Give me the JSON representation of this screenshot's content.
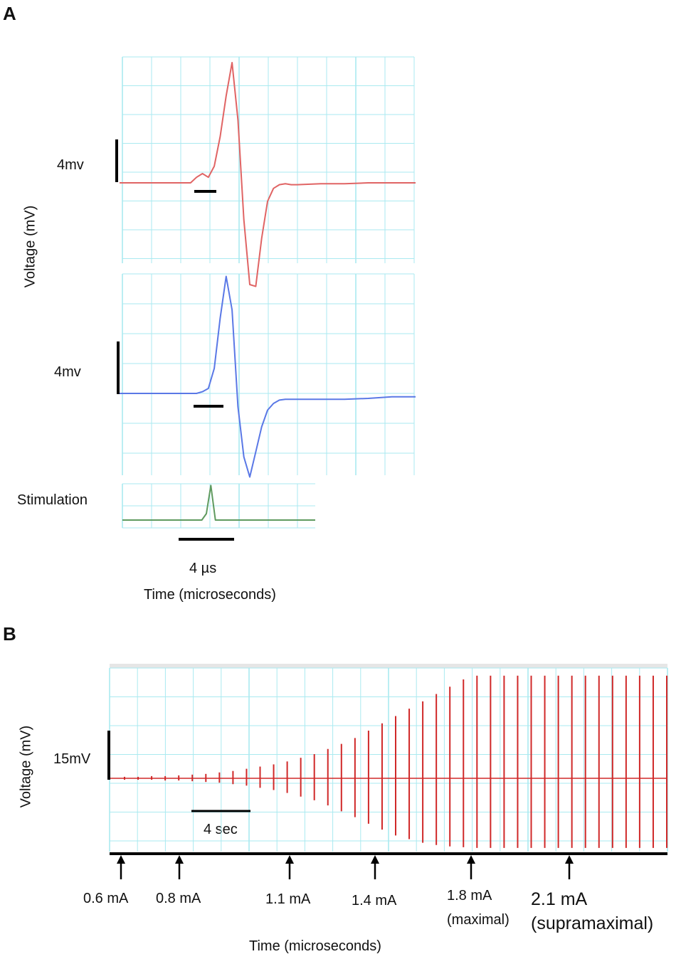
{
  "panel_a": {
    "letter": "A",
    "ylabel": "Voltage (mV)",
    "scale_top": "4mv",
    "scale_mid": "4mv",
    "stim_label": "Stimulation",
    "time_scale": "4 µs",
    "xlabel": "Time (microseconds)"
  },
  "panel_b": {
    "letter": "B",
    "ylabel": "Voltage (mV)",
    "scale_v": "15mV",
    "time_scale": "4 sec",
    "xlabel": "Time (microseconds)",
    "markers": [
      {
        "line1": "0.6 mA",
        "line2": ""
      },
      {
        "line1": "0.8 mA",
        "line2": ""
      },
      {
        "line1": "1.1 mA",
        "line2": ""
      },
      {
        "line1": "1.4 mA",
        "line2": ""
      },
      {
        "line1": "1.8 mA",
        "line2": "(maximal)"
      },
      {
        "line1": "2.1 mA",
        "line2": "(supramaximal)"
      }
    ]
  },
  "colors": {
    "grid": "#aaeaf0",
    "trace_red": "#e06464",
    "trace_blue": "#5a78e6",
    "trace_green": "#5f9a5f",
    "bar_red": "#d02828"
  },
  "chart_data": [
    {
      "type": "line",
      "panel": "A-top",
      "series": [
        {
          "x": [
            0,
            6,
            6.5,
            7,
            7.5,
            8,
            8.5,
            9,
            9.5,
            10,
            10.5,
            11,
            11.5,
            12,
            12.5,
            13,
            13.5,
            14,
            14.5,
            15,
            17,
            19,
            21,
            23,
            25
          ],
          "y": [
            0,
            0,
            0.3,
            0.5,
            0.3,
            0.9,
            2.5,
            4.7,
            6.5,
            3.4,
            -2.0,
            -5.5,
            -5.6,
            -3.0,
            -1.0,
            -0.3,
            -0.1,
            -0.05,
            -0.1,
            -0.1,
            -0.05,
            -0.05,
            0,
            0,
            0
          ]
        }
      ],
      "scale_bar": "4mv"
    },
    {
      "type": "line",
      "panel": "A-middle",
      "series": [
        {
          "x": [
            0,
            6,
            6.5,
            7,
            7.5,
            8,
            8.5,
            9,
            9.5,
            10,
            10.5,
            11,
            11.5,
            12,
            12.5,
            13,
            13.5,
            14,
            14.5,
            15,
            17,
            19,
            21,
            23,
            25
          ],
          "y": [
            0,
            0,
            0,
            0.1,
            0.3,
            1.5,
            4.5,
            7.0,
            5.0,
            -0.8,
            -3.8,
            -5.0,
            -3.5,
            -2.0,
            -1.0,
            -0.6,
            -0.4,
            -0.35,
            -0.35,
            -0.35,
            -0.35,
            -0.35,
            -0.3,
            -0.2,
            -0.2
          ]
        }
      ],
      "scale_bar": "4mv"
    },
    {
      "type": "line",
      "panel": "A-stimulation",
      "series": [
        {
          "x": [
            0,
            7.0,
            7.4,
            7.8,
            8.2,
            17
          ],
          "y": [
            0,
            0,
            0.5,
            2.7,
            0,
            0
          ]
        }
      ]
    },
    {
      "type": "bar",
      "panel": "B",
      "description_units": "mV",
      "values_up": [
        0.2,
        0.2,
        0.3,
        0.3,
        0.4,
        0.5,
        0.6,
        0.8,
        1.0,
        1.3,
        1.6,
        1.9,
        2.3,
        2.8,
        3.3,
        4.0,
        4.7,
        5.5,
        6.5,
        7.5,
        8.5,
        9.5,
        10.5,
        11.5,
        12.5,
        13.5,
        14.0,
        14.0,
        14.0,
        14.0,
        14.0,
        14.0,
        14.0,
        14.0,
        14.0,
        14.0,
        14.0,
        14.0,
        14.0,
        14.0,
        14.0
      ],
      "values_down": [
        0.2,
        0.2,
        0.2,
        0.3,
        0.3,
        0.4,
        0.5,
        0.6,
        0.8,
        1.0,
        1.3,
        1.6,
        2.0,
        2.5,
        3.0,
        3.7,
        4.5,
        5.3,
        6.2,
        7.0,
        7.8,
        8.3,
        8.8,
        9.1,
        9.3,
        9.4,
        9.5,
        9.5,
        9.5,
        9.5,
        9.5,
        9.5,
        9.5,
        9.5,
        9.5,
        9.5,
        9.5,
        9.5,
        9.5,
        9.5,
        9.5
      ],
      "scale_bar": "15mV",
      "time_scale": "4 sec"
    }
  ]
}
